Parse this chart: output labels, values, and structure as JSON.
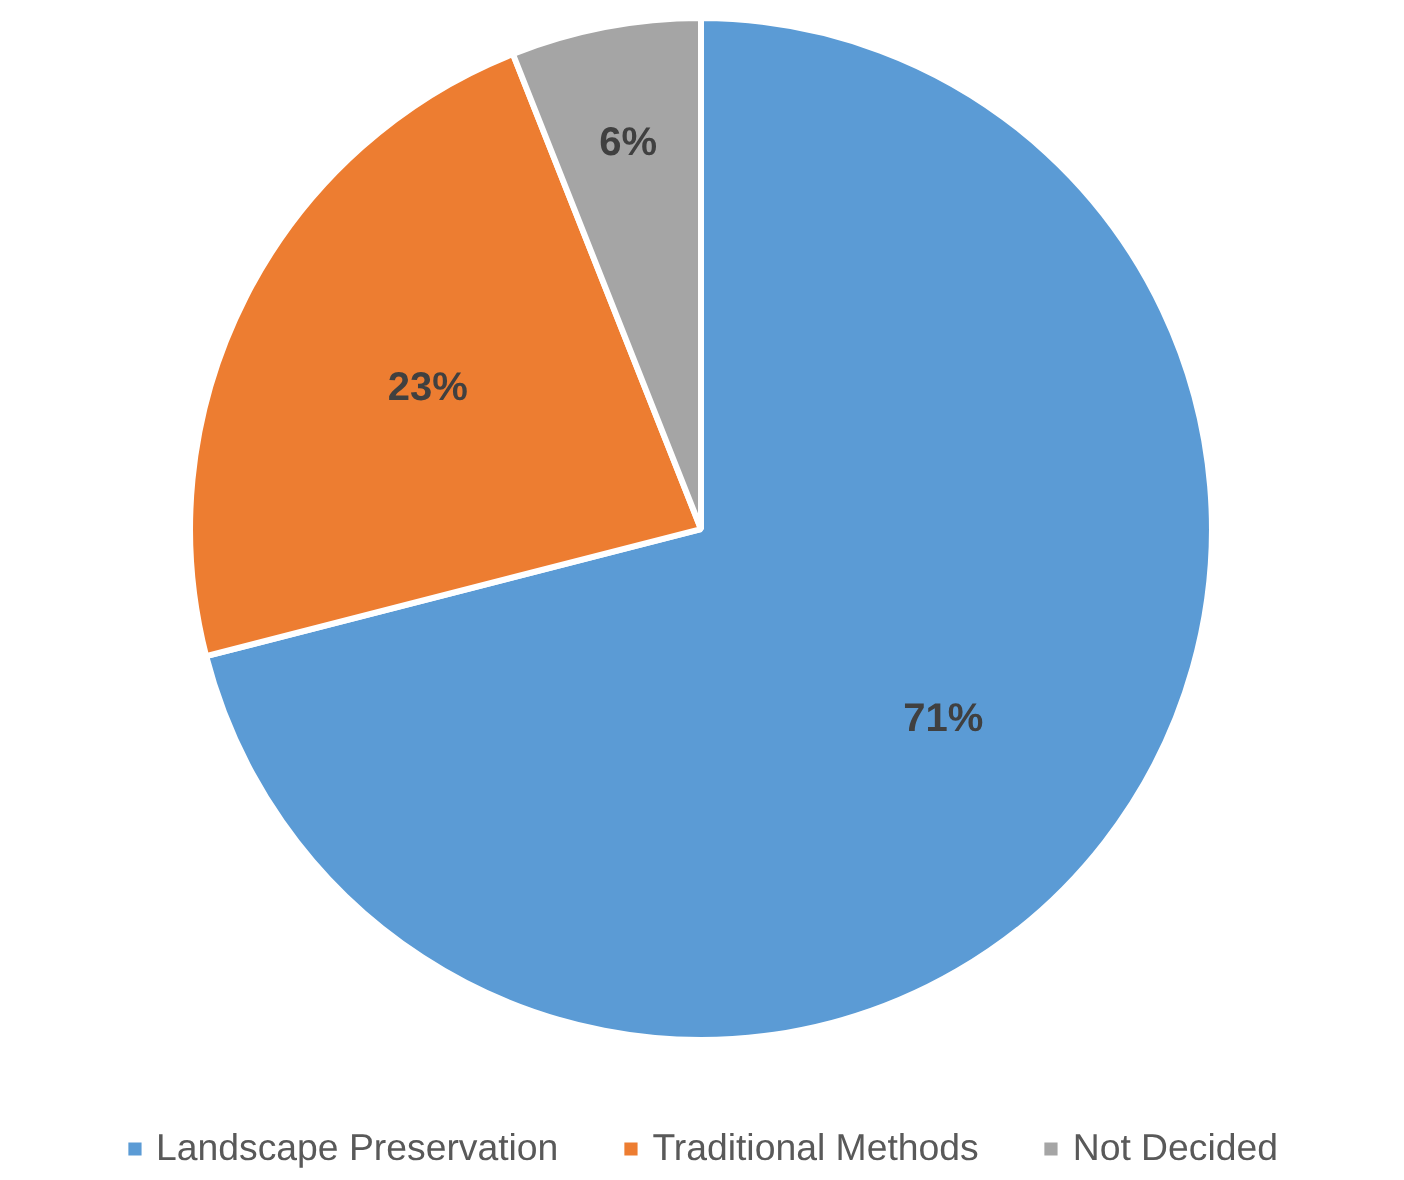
{
  "chart_data": {
    "type": "pie",
    "categories": [
      "Landscape Preservation",
      "Traditional Methods",
      "Not Decided"
    ],
    "values": [
      71,
      23,
      6
    ],
    "colors": [
      "#5b9bd5",
      "#ed7d31",
      "#a5a5a5"
    ],
    "value_labels": [
      "71%",
      "23%",
      "6%"
    ],
    "legend": "bottom"
  }
}
